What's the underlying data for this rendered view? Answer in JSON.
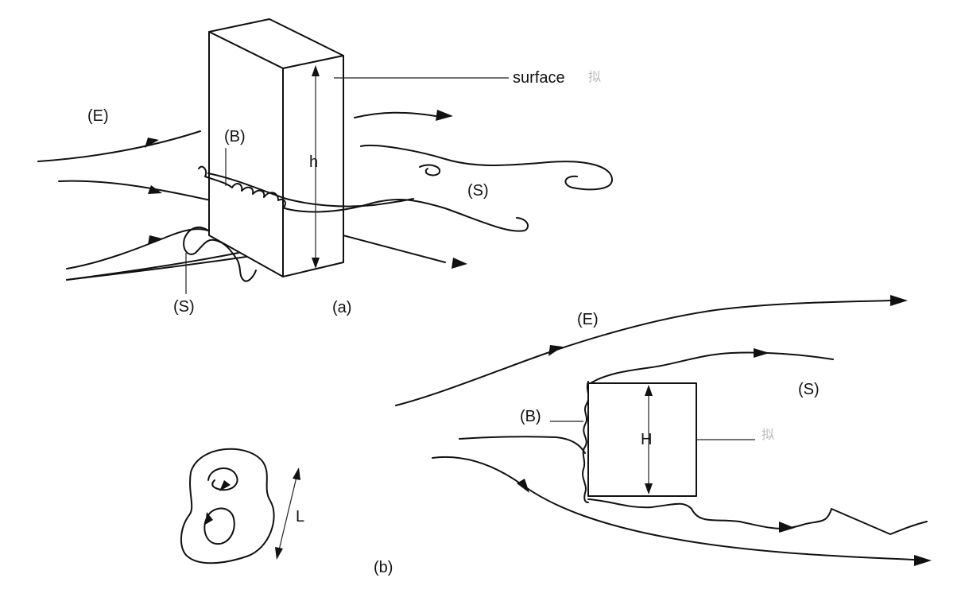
{
  "figure": {
    "panel_a": {
      "caption": "(a)",
      "label_E": "(E)",
      "label_B": "(B)",
      "label_S_wake": "(S)",
      "label_S_base": "(S)",
      "height_label": "h",
      "surface_label": "surface",
      "surface_mark": "拟"
    },
    "panel_b": {
      "caption": "(b)",
      "label_E": "(E)",
      "label_B": "(B)",
      "label_S": "(S)",
      "height_label": "H",
      "surface_mark": "拟",
      "eddy_scale_label": "L"
    }
  },
  "colors": {
    "ink": "#111111",
    "faint": "#bbbbbb"
  }
}
